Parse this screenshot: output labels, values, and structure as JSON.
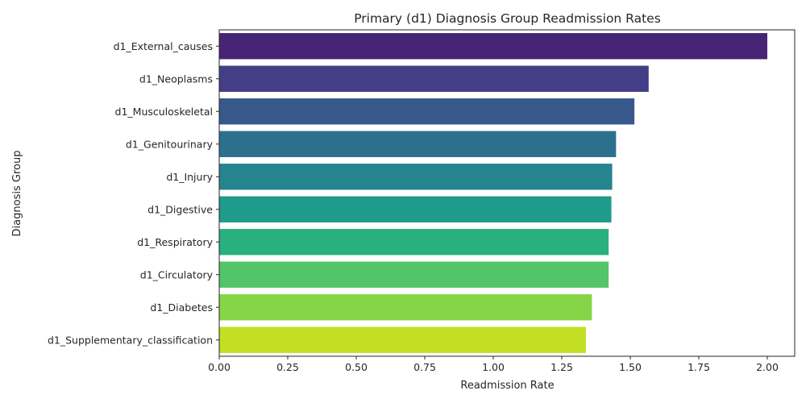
{
  "chart_data": {
    "type": "bar",
    "orientation": "horizontal",
    "title": "Primary (d1) Diagnosis Group Readmission Rates",
    "xlabel": "Readmission Rate",
    "ylabel": "Diagnosis Group",
    "xlim": [
      0,
      2.1
    ],
    "xticks": [
      "0.00",
      "0.25",
      "0.50",
      "0.75",
      "1.00",
      "1.25",
      "1.50",
      "1.75",
      "2.00"
    ],
    "grid": false,
    "legend": "none",
    "categories": [
      "d1_External_causes",
      "d1_Neoplasms",
      "d1_Musculoskeletal",
      "d1_Genitourinary",
      "d1_Injury",
      "d1_Digestive",
      "d1_Respiratory",
      "d1_Circulatory",
      "d1_Diabetes",
      "d1_Supplementary_classification"
    ],
    "values": [
      2.0,
      1.567,
      1.515,
      1.448,
      1.434,
      1.431,
      1.421,
      1.421,
      1.36,
      1.338
    ],
    "colors": [
      "#482475",
      "#433e85",
      "#38588c",
      "#2d708e",
      "#25858e",
      "#1e9b8a",
      "#2ab07f",
      "#52c569",
      "#86d549",
      "#c2df23"
    ]
  }
}
